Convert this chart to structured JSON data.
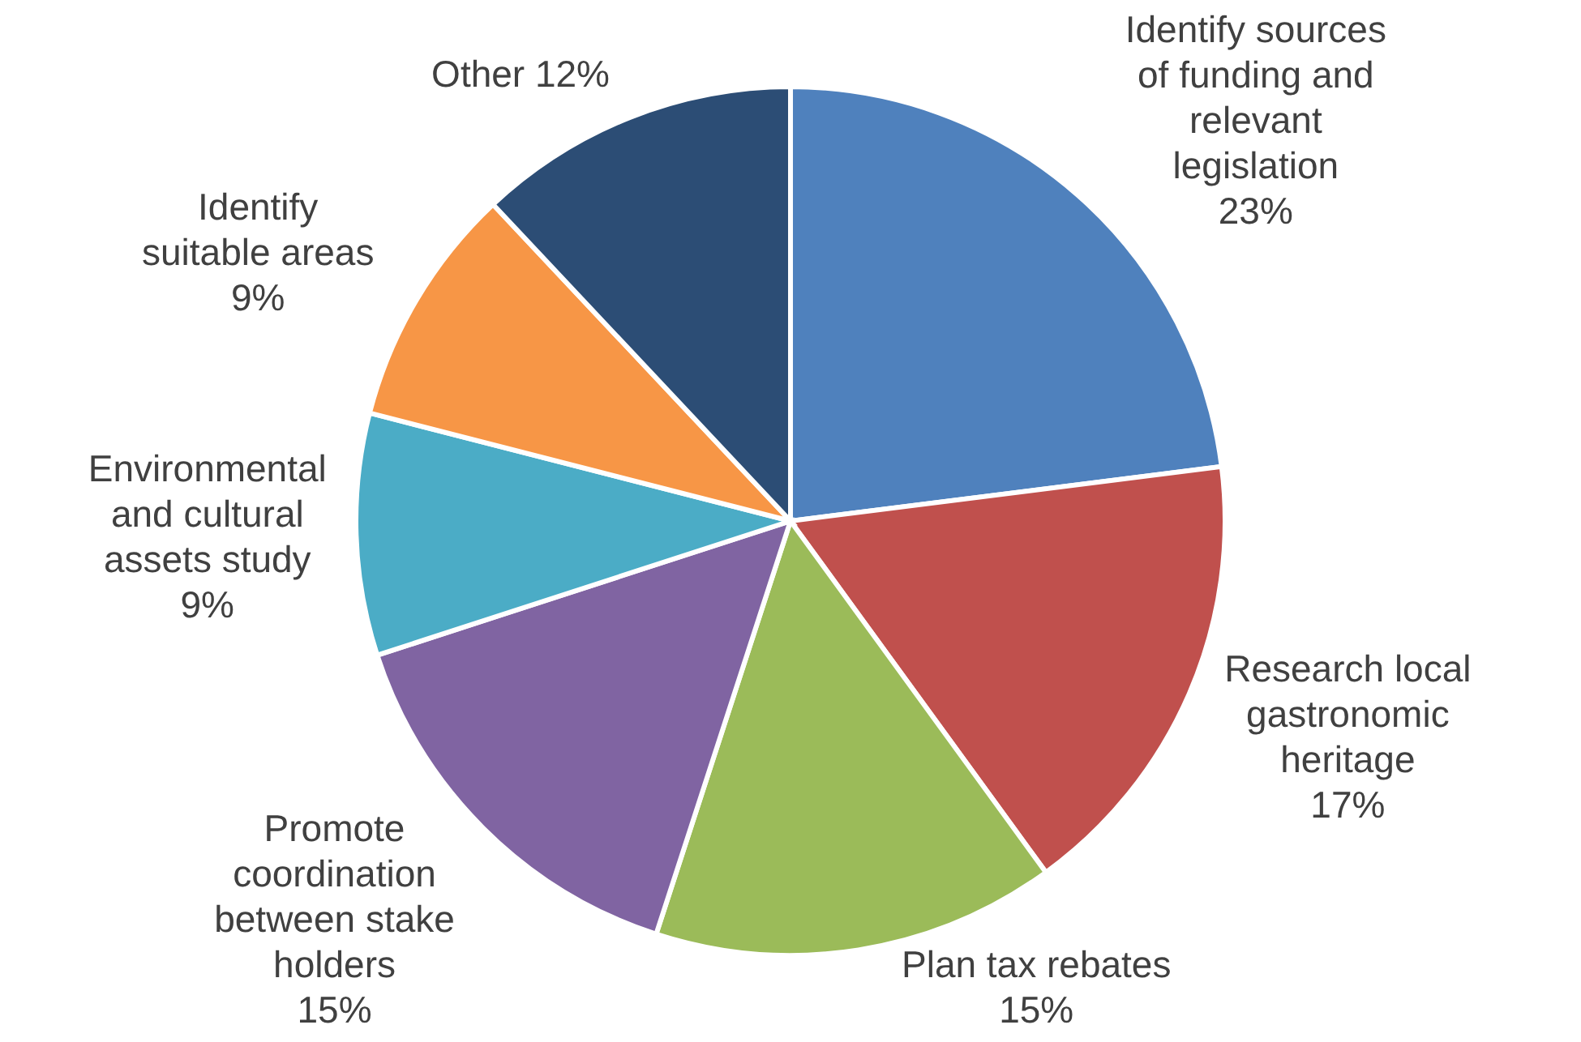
{
  "chart_data": {
    "type": "pie",
    "categories": [
      "Identify sources of funding and relevant legislation",
      "Research local gastronomic heritage",
      "Plan tax rebates",
      "Promote coordination between stake holders",
      "Environmental and cultural assets study",
      "Identify suitable areas",
      "Other"
    ],
    "values": [
      23,
      17,
      15,
      15,
      9,
      9,
      12
    ],
    "value_labels": [
      "23%",
      "17%",
      "15%",
      "15%",
      "9%",
      "9%",
      "12%"
    ],
    "colors": [
      "#4f81bd",
      "#c0504d",
      "#9bbb59",
      "#8064a2",
      "#4bacc6",
      "#f79646",
      "#2c4d75"
    ]
  }
}
